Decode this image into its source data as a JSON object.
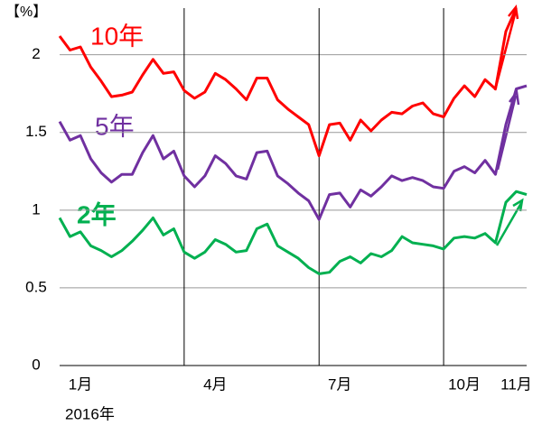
{
  "chart_data": {
    "type": "line",
    "y_label": "【%】",
    "x_label": "2016年",
    "categories": [
      null,
      null,
      "1月",
      null,
      null,
      null,
      null,
      null,
      null,
      null,
      null,
      null,
      null,
      null,
      null,
      "4月",
      null,
      null,
      null,
      null,
      null,
      null,
      null,
      null,
      null,
      null,
      null,
      "7月",
      null,
      null,
      null,
      null,
      null,
      null,
      null,
      null,
      null,
      null,
      null,
      "10月",
      null,
      null,
      null,
      null,
      "11月",
      null
    ],
    "series": [
      {
        "name": "10年",
        "color": "#ff0000",
        "values": [
          2.12,
          2.03,
          2.05,
          1.92,
          1.83,
          1.73,
          1.74,
          1.76,
          1.87,
          1.97,
          1.88,
          1.89,
          1.77,
          1.72,
          1.76,
          1.88,
          1.84,
          1.78,
          1.71,
          1.85,
          1.85,
          1.71,
          1.65,
          1.6,
          1.55,
          1.35,
          1.55,
          1.56,
          1.45,
          1.58,
          1.51,
          1.58,
          1.63,
          1.62,
          1.67,
          1.69,
          1.62,
          1.6,
          1.72,
          1.8,
          1.73,
          1.84,
          1.78,
          2.15,
          2.3,
          null
        ]
      },
      {
        "name": "5年",
        "color": "#7030a0",
        "values": [
          1.57,
          1.45,
          1.48,
          1.33,
          1.24,
          1.18,
          1.23,
          1.23,
          1.37,
          1.48,
          1.33,
          1.38,
          1.22,
          1.15,
          1.22,
          1.35,
          1.3,
          1.22,
          1.2,
          1.37,
          1.38,
          1.22,
          1.17,
          1.11,
          1.06,
          0.94,
          1.1,
          1.11,
          1.02,
          1.13,
          1.09,
          1.15,
          1.22,
          1.19,
          1.21,
          1.19,
          1.15,
          1.14,
          1.25,
          1.28,
          1.24,
          1.32,
          1.23,
          1.55,
          1.78,
          1.8
        ]
      },
      {
        "name": "2年",
        "color": "#00b050",
        "values": [
          0.95,
          0.83,
          0.86,
          0.77,
          0.74,
          0.7,
          0.74,
          0.8,
          0.87,
          0.95,
          0.84,
          0.88,
          0.73,
          0.69,
          0.73,
          0.81,
          0.78,
          0.73,
          0.74,
          0.88,
          0.91,
          0.77,
          0.73,
          0.69,
          0.63,
          0.59,
          0.6,
          0.67,
          0.7,
          0.66,
          0.72,
          0.7,
          0.74,
          0.83,
          0.79,
          0.78,
          0.77,
          0.75,
          0.82,
          0.83,
          0.82,
          0.85,
          0.79,
          1.05,
          1.12,
          1.1
        ]
      }
    ],
    "ylim": [
      0,
      2.3
    ],
    "yticks": [
      0,
      0.5,
      1,
      1.5,
      2
    ],
    "grid": true,
    "xgrid": [
      12,
      25,
      37
    ]
  }
}
